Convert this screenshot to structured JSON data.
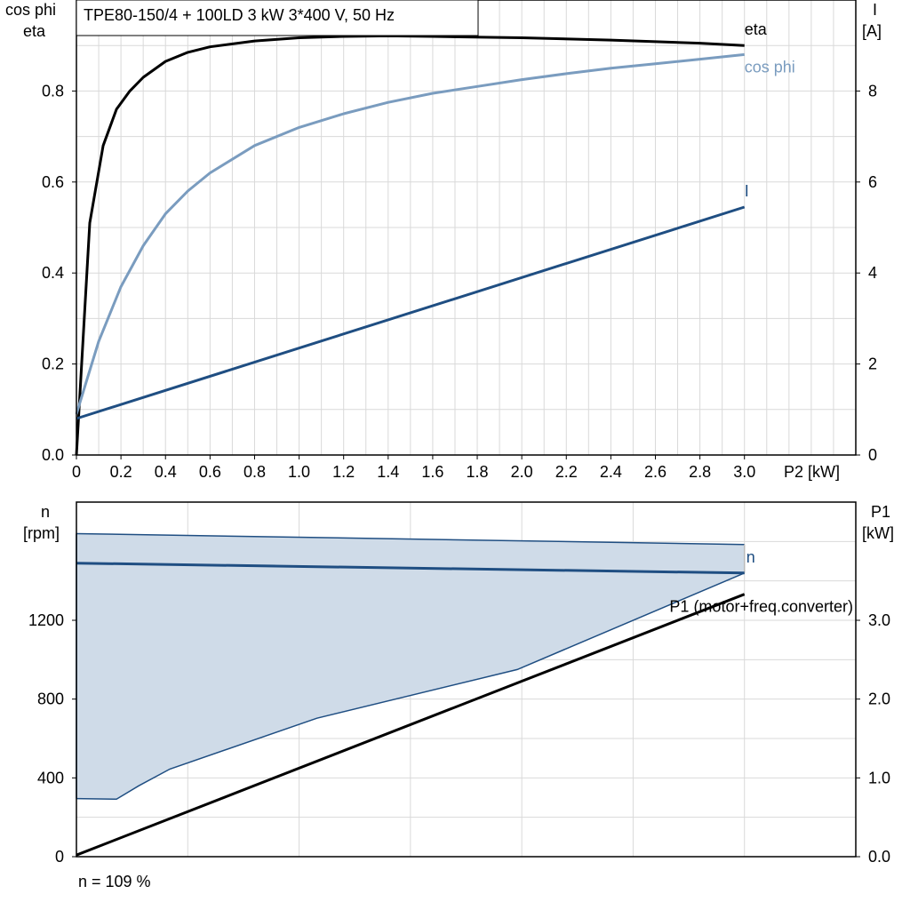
{
  "chart_data": [
    {
      "type": "line",
      "title": "TPE80-150/4 + 100LD   3 kW   3*400 V, 50 Hz",
      "xlabel": "P2 [kW]",
      "ylabel_left_line1": "cos phi",
      "ylabel_left_line2": "eta",
      "ylabel_right_line1": "I",
      "ylabel_right_line2": "[A]",
      "xlim": [
        0,
        3.5
      ],
      "ylim_left": [
        0,
        1.0
      ],
      "ylim_right": [
        0,
        10
      ],
      "x_ticks": [
        "0",
        "0.2",
        "0.4",
        "0.6",
        "0.8",
        "1.0",
        "1.2",
        "1.4",
        "1.6",
        "1.8",
        "2.0",
        "2.2",
        "2.4",
        "2.6",
        "2.8",
        "3.0"
      ],
      "y_ticks_left": [
        "0.0",
        "0.2",
        "0.4",
        "0.6",
        "0.8"
      ],
      "y_ticks_right": [
        "0",
        "2",
        "4",
        "6",
        "8"
      ],
      "grid": true,
      "series": [
        {
          "name": "eta",
          "color": "#000000",
          "axis": "left",
          "x": [
            0,
            0.06,
            0.12,
            0.18,
            0.24,
            0.3,
            0.4,
            0.5,
            0.6,
            0.8,
            1.0,
            1.2,
            1.4,
            1.6,
            2.0,
            2.4,
            2.8,
            3.0
          ],
          "y": [
            0.0,
            0.51,
            0.68,
            0.76,
            0.8,
            0.83,
            0.865,
            0.885,
            0.897,
            0.91,
            0.917,
            0.92,
            0.921,
            0.92,
            0.917,
            0.912,
            0.905,
            0.9
          ]
        },
        {
          "name": "cos phi",
          "color": "#7a9cbf",
          "axis": "left",
          "x": [
            0,
            0.05,
            0.1,
            0.2,
            0.3,
            0.4,
            0.5,
            0.6,
            0.8,
            1.0,
            1.2,
            1.4,
            1.6,
            1.8,
            2.0,
            2.2,
            2.4,
            2.6,
            2.8,
            3.0
          ],
          "y": [
            0.09,
            0.17,
            0.25,
            0.37,
            0.46,
            0.53,
            0.58,
            0.62,
            0.68,
            0.72,
            0.75,
            0.775,
            0.795,
            0.81,
            0.825,
            0.838,
            0.85,
            0.86,
            0.87,
            0.88
          ]
        },
        {
          "name": "I",
          "color": "#1f4e82",
          "axis": "right",
          "x": [
            0,
            3.0
          ],
          "y": [
            0.8,
            5.45
          ]
        }
      ]
    },
    {
      "type": "area",
      "xlim": [
        0,
        3.5
      ],
      "ylabel_left_line1": "n",
      "ylabel_left_line2": "[rpm]",
      "ylabel_right_line1": "P1",
      "ylabel_right_line2": "[kW]",
      "ylim_left": [
        0,
        1800
      ],
      "ylim_right": [
        0,
        4.5
      ],
      "y_ticks_left": [
        "0",
        "400",
        "800",
        "1200"
      ],
      "y_ticks_right": [
        "0.0",
        "1.0",
        "2.0",
        "3.0"
      ],
      "grid": true,
      "series": [
        {
          "name": "n",
          "color": "#1f4e82",
          "axis": "left",
          "x": [
            0,
            3.0
          ],
          "y": [
            1490,
            1440
          ]
        },
        {
          "name": "P1 (motor+freq.converter)",
          "color": "#000000",
          "axis": "right",
          "x": [
            0,
            3.0
          ],
          "y": [
            0.02,
            3.33
          ]
        }
      ],
      "range_band": {
        "color": "#cfdbe8",
        "edge_color": "#1f4e82",
        "upper": {
          "x": [
            0,
            3.0
          ],
          "y": [
            1640,
            1585
          ]
        },
        "lower": {
          "x": [
            0,
            0.18,
            0.28,
            0.42,
            1.08,
            1.98,
            3.0
          ],
          "y": [
            295,
            292,
            360,
            445,
            703,
            950,
            1440
          ]
        }
      },
      "footnote": "n = 109 %"
    }
  ]
}
